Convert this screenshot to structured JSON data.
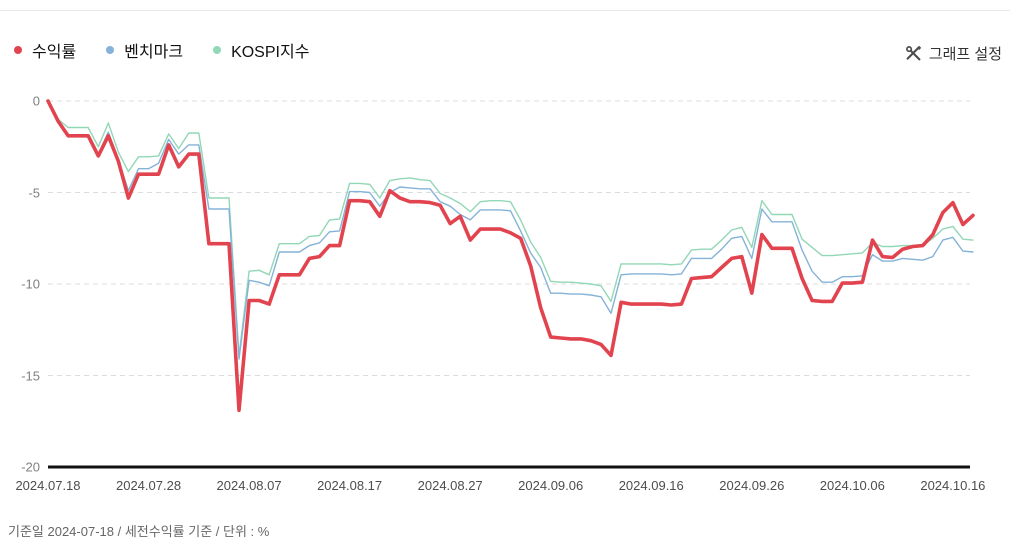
{
  "legend": [
    {
      "label": "수익률",
      "color": "#e2444f"
    },
    {
      "label": "벤치마크",
      "color": "#85b2d8"
    },
    {
      "label": "KOSPI지수",
      "color": "#92d7b6"
    }
  ],
  "settings": {
    "label": "그래프 설정",
    "icon": "tools-icon",
    "icon_color": "#4d4d4d"
  },
  "footer": {
    "note": "기준일 2024-07-18 / 세전수익률 기준 / 단위 : %"
  },
  "chart_data": {
    "type": "line",
    "unit": "%",
    "x_start_date": "2024-07-18",
    "x_interval": "1 day",
    "x_tick_labels": [
      "2024.07.18",
      "2024.07.28",
      "2024.08.07",
      "2024.08.17",
      "2024.08.27",
      "2024.09.06",
      "2024.09.16",
      "2024.09.26",
      "2024.10.06",
      "2024.10.16"
    ],
    "x_tick_day_indices": [
      0,
      10,
      20,
      30,
      40,
      50,
      60,
      70,
      80,
      90
    ],
    "y_ticks": [
      0,
      -5,
      -10,
      -15,
      -20
    ],
    "ylim": [
      -20,
      0
    ],
    "grid": "dashed horizontal",
    "grid_color": "#dcdcdc",
    "axis_color": "#111111",
    "legend_position": "top-left",
    "series": [
      {
        "name": "수익률",
        "color": "#e2444f",
        "width": 3.6,
        "values": [
          0,
          -1.1,
          -1.9,
          -1.9,
          -1.9,
          -3,
          -1.9,
          -3.3,
          -5.3,
          -4,
          -4,
          -4,
          -2.4,
          -3.6,
          -2.9,
          -2.9,
          -7.8,
          -7.8,
          -7.8,
          -16.9,
          -10.9,
          -10.9,
          -11.1,
          -9.5,
          -9.5,
          -9.5,
          -8.6,
          -8.5,
          -7.9,
          -7.9,
          -5.45,
          -5.45,
          -5.5,
          -6.3,
          -4.9,
          -5.3,
          -5.5,
          -5.5,
          -5.55,
          -5.7,
          -6.7,
          -6.3,
          -7.6,
          -7,
          -7,
          -7,
          -7.2,
          -7.5,
          -9,
          -11.3,
          -12.9,
          -12.95,
          -13,
          -13,
          -13.1,
          -13.3,
          -13.9,
          -11,
          -11.1,
          -11.1,
          -11.1,
          -11.1,
          -11.15,
          -11.1,
          -9.7,
          -9.65,
          -9.6,
          -9.1,
          -8.6,
          -8.5,
          -10.5,
          -7.3,
          -8.05,
          -8.05,
          -8.05,
          -9.7,
          -10.9,
          -10.95,
          -10.95,
          -9.95,
          -9.95,
          -9.9,
          -7.6,
          -8.5,
          -8.55,
          -8.1,
          -7.95,
          -7.9,
          -7.3,
          -6.1,
          -5.55,
          -6.75,
          -6.25
        ]
      },
      {
        "name": "벤치마크",
        "color": "#85b2d8",
        "width": 1.4,
        "values": [
          0,
          -1.2,
          -1.85,
          -1.85,
          -1.85,
          -2.9,
          -1.7,
          -3.2,
          -4.9,
          -3.7,
          -3.7,
          -3.4,
          -2.1,
          -2.9,
          -2.4,
          -2.4,
          -5.9,
          -5.9,
          -5.9,
          -14.1,
          -9.8,
          -9.9,
          -10.1,
          -8.25,
          -8.25,
          -8.25,
          -7.9,
          -7.75,
          -7.15,
          -7.1,
          -4.95,
          -4.95,
          -5,
          -5.75,
          -5,
          -4.7,
          -4.75,
          -4.8,
          -4.8,
          -5.5,
          -5.75,
          -6.2,
          -6.5,
          -5.95,
          -5.95,
          -5.95,
          -6,
          -7.1,
          -8.3,
          -9.1,
          -10.5,
          -10.5,
          -10.55,
          -10.55,
          -10.6,
          -10.7,
          -11.6,
          -9.5,
          -9.45,
          -9.45,
          -9.45,
          -9.45,
          -9.5,
          -9.45,
          -8.6,
          -8.6,
          -8.6,
          -8.1,
          -7.5,
          -7.4,
          -8.6,
          -5.9,
          -6.6,
          -6.6,
          -6.6,
          -8.15,
          -9.3,
          -9.9,
          -9.9,
          -9.6,
          -9.6,
          -9.55,
          -8.4,
          -8.75,
          -8.75,
          -8.6,
          -8.65,
          -8.7,
          -8.5,
          -7.6,
          -7.45,
          -8.2,
          -8.25
        ]
      },
      {
        "name": "KOSPI지수",
        "color": "#92d7b6",
        "width": 1.4,
        "values": [
          0,
          -1,
          -1.45,
          -1.45,
          -1.45,
          -2.5,
          -1.2,
          -2.8,
          -3.85,
          -3.05,
          -3.05,
          -3,
          -1.8,
          -2.6,
          -1.75,
          -1.75,
          -5.3,
          -5.3,
          -5.3,
          -13.9,
          -9.3,
          -9.25,
          -9.5,
          -7.8,
          -7.8,
          -7.8,
          -7.4,
          -7.35,
          -6.5,
          -6.45,
          -4.5,
          -4.5,
          -4.55,
          -5.3,
          -4.35,
          -4.25,
          -4.2,
          -4.3,
          -4.35,
          -5.05,
          -5.3,
          -5.6,
          -6.05,
          -5.5,
          -5.45,
          -5.45,
          -5.5,
          -6.5,
          -7.7,
          -8.55,
          -9.85,
          -9.9,
          -9.9,
          -9.95,
          -10,
          -10.1,
          -10.95,
          -8.9,
          -8.9,
          -8.9,
          -8.9,
          -8.9,
          -8.95,
          -8.9,
          -8.15,
          -8.1,
          -8.1,
          -7.6,
          -7.05,
          -6.9,
          -8,
          -5.45,
          -6.2,
          -6.2,
          -6.2,
          -7.55,
          -8,
          -8.45,
          -8.45,
          -8.4,
          -8.35,
          -8.3,
          -7.75,
          -7.95,
          -7.95,
          -7.9,
          -7.9,
          -7.9,
          -7.5,
          -7,
          -6.85,
          -7.55,
          -7.6
        ]
      }
    ]
  }
}
